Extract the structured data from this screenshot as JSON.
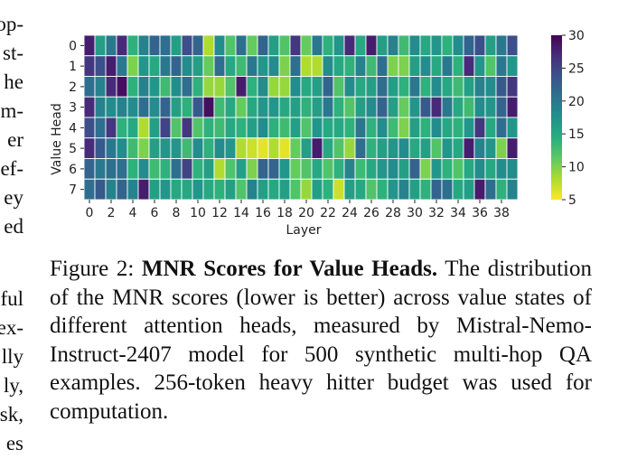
{
  "left_fragments": [
    "op-",
    "st-",
    "he",
    "m-",
    "er",
    "ef-",
    "ey",
    "ed",
    "ful",
    "ex-",
    "lly",
    "ly,",
    "sk,",
    "es"
  ],
  "figure": {
    "caption_label": "Figure 2:",
    "caption_title": "MNR Scores for Value Heads.",
    "caption_body": "The distribution of the MNR scores (lower is better) across value states of different attention heads, measured by Mistral-Nemo-Instruct-2407 model for 500 synthetic multi-hop QA examples. 256-token heavy hitter budget was used for computation."
  },
  "chart_data": {
    "type": "heatmap",
    "xlabel": "Layer",
    "ylabel": "Value Head",
    "x_tick_labels": [
      "0",
      "2",
      "4",
      "6",
      "8",
      "10",
      "12",
      "14",
      "16",
      "18",
      "20",
      "22",
      "24",
      "26",
      "28",
      "30",
      "32",
      "34",
      "36",
      "38"
    ],
    "y_tick_labels": [
      "0",
      "1",
      "2",
      "3",
      "4",
      "5",
      "6",
      "7"
    ],
    "colorbar": {
      "min": 5,
      "max": 30,
      "tick_labels": [
        "30",
        "25",
        "20",
        "15",
        "10",
        "5"
      ],
      "colormap": "viridis_r"
    },
    "rows": [
      [
        28,
        16,
        20,
        27,
        14,
        19,
        22,
        21,
        16,
        24,
        22,
        8,
        18,
        12,
        21,
        11,
        22,
        16,
        12,
        26,
        11,
        20,
        14,
        17,
        27,
        15,
        28,
        16,
        19,
        13,
        18,
        15,
        17,
        14,
        18,
        22,
        24,
        16,
        20,
        24
      ],
      [
        26,
        24,
        28,
        20,
        10,
        17,
        15,
        20,
        22,
        18,
        16,
        11,
        21,
        15,
        13,
        20,
        17,
        18,
        10,
        21,
        8,
        8,
        18,
        15,
        14,
        19,
        13,
        21,
        10,
        10,
        16,
        18,
        15,
        20,
        14,
        27,
        17,
        12,
        20,
        17
      ],
      [
        21,
        19,
        27,
        29,
        14,
        19,
        17,
        13,
        18,
        21,
        14,
        9,
        9,
        12,
        28,
        14,
        18,
        9,
        9,
        18,
        15,
        16,
        22,
        12,
        18,
        15,
        16,
        21,
        16,
        14,
        20,
        14,
        18,
        15,
        13,
        16,
        19,
        18,
        23,
        26
      ],
      [
        27,
        19,
        18,
        19,
        18,
        21,
        18,
        22,
        16,
        14,
        23,
        29,
        13,
        15,
        11,
        15,
        17,
        17,
        15,
        16,
        14,
        16,
        20,
        14,
        12,
        16,
        18,
        22,
        16,
        11,
        17,
        23,
        27,
        20,
        15,
        13,
        18,
        17,
        22,
        28
      ],
      [
        24,
        21,
        26,
        14,
        15,
        8,
        16,
        25,
        12,
        26,
        12,
        14,
        13,
        15,
        14,
        16,
        18,
        14,
        13,
        16,
        12,
        17,
        15,
        15,
        14,
        20,
        14,
        18,
        13,
        10,
        16,
        14,
        18,
        15,
        14,
        17,
        26,
        15,
        21,
        17
      ],
      [
        27,
        23,
        20,
        18,
        13,
        10,
        16,
        17,
        17,
        13,
        18,
        14,
        18,
        17,
        8,
        7,
        6,
        8,
        6,
        11,
        16,
        28,
        15,
        12,
        9,
        21,
        14,
        16,
        17,
        18,
        15,
        16,
        12,
        17,
        15,
        28,
        19,
        17,
        10,
        28
      ],
      [
        22,
        20,
        21,
        21,
        14,
        18,
        13,
        14,
        21,
        25,
        14,
        16,
        8,
        12,
        16,
        10,
        22,
        22,
        17,
        11,
        12,
        15,
        12,
        14,
        19,
        13,
        15,
        17,
        18,
        16,
        22,
        10,
        17,
        14,
        12,
        15,
        18,
        15,
        18,
        18
      ],
      [
        21,
        23,
        19,
        22,
        19,
        28,
        16,
        17,
        15,
        15,
        17,
        15,
        14,
        16,
        12,
        19,
        16,
        15,
        16,
        12,
        9,
        16,
        14,
        7,
        16,
        15,
        12,
        14,
        17,
        19,
        16,
        14,
        22,
        21,
        15,
        16,
        28,
        21,
        14,
        19
      ]
    ]
  }
}
